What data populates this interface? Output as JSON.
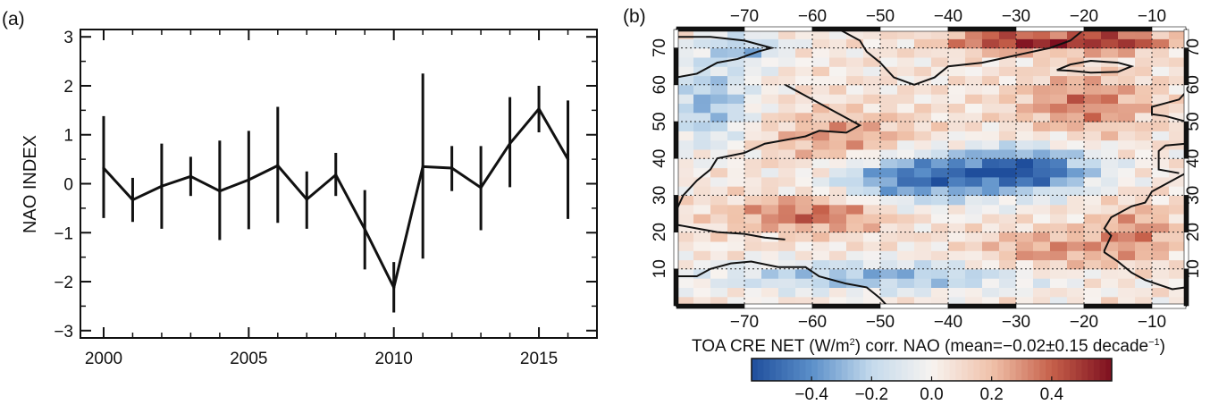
{
  "panels": {
    "left_label": "(a)",
    "right_label": "(b)"
  },
  "chart_data": [
    {
      "type": "line",
      "panel": "(a)",
      "title": "",
      "xlabel": "",
      "ylabel": "NAO INDEX",
      "xlim": [
        1999.2,
        2017
      ],
      "ylim": [
        -3.15,
        3.15
      ],
      "x_ticks": [
        2000,
        2005,
        2010,
        2015
      ],
      "y_ticks": [
        3,
        2,
        1,
        0,
        -1,
        -2,
        -3
      ],
      "x_tick_labels": [
        "2000",
        "2005",
        "2010",
        "2015"
      ],
      "y_tick_labels": [
        "3",
        "2",
        "1",
        "0",
        "−1",
        "−2",
        "−3"
      ],
      "grid": false,
      "series": [
        {
          "x": [
            2000,
            2001,
            2002,
            2003,
            2004,
            2005,
            2006,
            2007,
            2008,
            2009,
            2010,
            2011,
            2012,
            2013,
            2014,
            2015,
            2016
          ],
          "values": [
            0.32,
            -0.33,
            -0.05,
            0.15,
            -0.15,
            0.08,
            0.37,
            -0.32,
            0.18,
            -0.93,
            -2.12,
            0.35,
            0.32,
            -0.08,
            0.82,
            1.53,
            0.5
          ],
          "error_low": [
            -0.7,
            -0.78,
            -0.92,
            -0.25,
            -1.15,
            -0.93,
            -0.8,
            -0.92,
            -0.25,
            -1.75,
            -2.63,
            -1.53,
            -0.15,
            -0.95,
            -0.07,
            1.05,
            -0.72
          ],
          "error_high": [
            1.38,
            0.12,
            0.82,
            0.55,
            0.88,
            1.08,
            1.57,
            0.25,
            0.63,
            -0.13,
            -1.6,
            2.25,
            0.77,
            0.77,
            1.77,
            2.0,
            1.7
          ]
        }
      ],
      "line_color": "#111111"
    },
    {
      "type": "heatmap",
      "panel": "(b)",
      "title": "",
      "xlim": [
        -80,
        -5
      ],
      "ylim": [
        0,
        75
      ],
      "x_ticks": [
        -70,
        -60,
        -50,
        -40,
        -30,
        -20,
        -10
      ],
      "y_ticks": [
        10,
        20,
        30,
        40,
        50,
        60,
        70
      ],
      "x_tick_labels": [
        "−70",
        "−60",
        "−50",
        "−40",
        "−30",
        "−20",
        "−10"
      ],
      "y_tick_labels": [
        "10",
        "20",
        "30",
        "40",
        "50",
        "60",
        "70"
      ],
      "grid": true,
      "colorbar": {
        "label_main": "TOA CRE NET (W/m",
        "label_sup": "2",
        "label_mid": ") corr. NAO (mean=−0.02",
        "label_pm": "±",
        "label_tail": "0.15 decade",
        "label_sup2": "−1",
        "label_close": ")",
        "range": [
          -0.6,
          0.6
        ],
        "ticks": [
          -0.4,
          -0.2,
          0.0,
          0.2,
          0.4
        ],
        "tick_labels": [
          "−0.4",
          "−0.2",
          "0.0",
          "0.2",
          "0.4"
        ],
        "colors": [
          "#1f4e9c",
          "#5b8fc9",
          "#c4daec",
          "#f7f3f0",
          "#f0c2aa",
          "#c6604a",
          "#7d0f1f"
        ]
      },
      "fields": [
        {
          "lon": -45,
          "lat": 35,
          "value": -0.55,
          "spread_lon": 12,
          "spread_lat": 7
        },
        {
          "lon": -28,
          "lat": 37,
          "value": -0.6,
          "spread_lon": 10,
          "spread_lat": 6
        },
        {
          "lon": -50,
          "lat": 8,
          "value": -0.35,
          "spread_lon": 25,
          "spread_lat": 4
        },
        {
          "lon": -75,
          "lat": 55,
          "value": -0.35,
          "spread_lon": 6,
          "spread_lat": 12
        },
        {
          "lon": -70,
          "lat": 70,
          "value": -0.3,
          "spread_lon": 6,
          "spread_lat": 4
        },
        {
          "lon": -30,
          "lat": 72,
          "value": 0.5,
          "spread_lon": 10,
          "spread_lat": 3
        },
        {
          "lon": -15,
          "lat": 72,
          "value": 0.45,
          "spread_lon": 8,
          "spread_lat": 3
        },
        {
          "lon": -60,
          "lat": 25,
          "value": 0.35,
          "spread_lon": 12,
          "spread_lat": 5
        },
        {
          "lon": -55,
          "lat": 45,
          "value": 0.25,
          "spread_lon": 12,
          "spread_lat": 8
        },
        {
          "lon": -20,
          "lat": 55,
          "value": 0.3,
          "spread_lon": 10,
          "spread_lat": 8
        },
        {
          "lon": -12,
          "lat": 20,
          "value": 0.25,
          "spread_lon": 6,
          "spread_lat": 8
        },
        {
          "lon": -25,
          "lat": 15,
          "value": 0.25,
          "spread_lon": 10,
          "spread_lat": 6
        }
      ]
    }
  ]
}
